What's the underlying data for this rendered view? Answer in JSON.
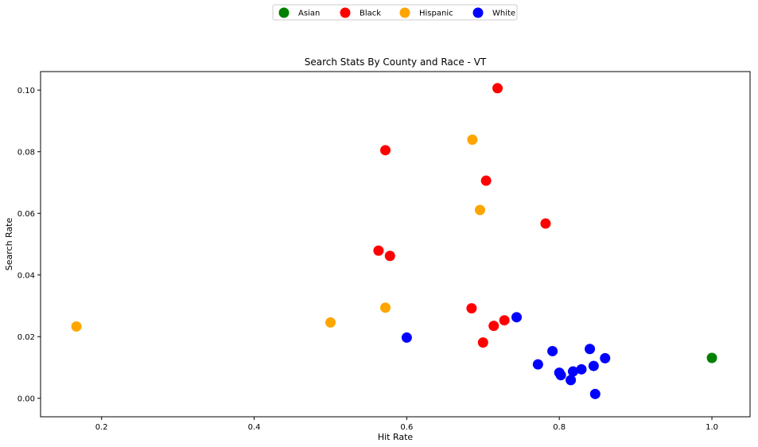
{
  "chart_data": {
    "type": "scatter",
    "title": "Search Stats By County and Race - VT",
    "xlabel": "Hit Rate",
    "ylabel": "Search Rate",
    "xlim": [
      0.12,
      1.05
    ],
    "ylim": [
      -0.006,
      0.106
    ],
    "xticks": [
      0.2,
      0.4,
      0.6,
      0.8,
      1.0
    ],
    "xtick_labels": [
      "0.2",
      "0.4",
      "0.6",
      "0.8",
      "1.0"
    ],
    "yticks": [
      0.0,
      0.02,
      0.04,
      0.06,
      0.08,
      0.1
    ],
    "ytick_labels": [
      "0.00",
      "0.02",
      "0.04",
      "0.06",
      "0.08",
      "0.10"
    ],
    "grid": false,
    "legend_placement": "top-center",
    "series": [
      {
        "name": "Asian",
        "color": "#008000",
        "points": [
          [
            1.0,
            0.0131
          ]
        ]
      },
      {
        "name": "Black",
        "color": "#ff0000",
        "points": [
          [
            0.719,
            0.1006
          ],
          [
            0.572,
            0.0805
          ],
          [
            0.704,
            0.0706
          ],
          [
            0.782,
            0.0567
          ],
          [
            0.563,
            0.0479
          ],
          [
            0.578,
            0.0462
          ],
          [
            0.685,
            0.0292
          ],
          [
            0.728,
            0.0253
          ],
          [
            0.714,
            0.0235
          ],
          [
            0.7,
            0.0181
          ]
        ]
      },
      {
        "name": "Hispanic",
        "color": "#ffa500",
        "points": [
          [
            0.686,
            0.0839
          ],
          [
            0.696,
            0.0611
          ],
          [
            0.572,
            0.0294
          ],
          [
            0.167,
            0.0233
          ],
          [
            0.5,
            0.0246
          ]
        ]
      },
      {
        "name": "White",
        "color": "#0000ff",
        "points": [
          [
            0.744,
            0.0263
          ],
          [
            0.6,
            0.0197
          ],
          [
            0.84,
            0.016
          ],
          [
            0.791,
            0.0153
          ],
          [
            0.86,
            0.013
          ],
          [
            0.772,
            0.011
          ],
          [
            0.845,
            0.0105
          ],
          [
            0.829,
            0.0094
          ],
          [
            0.818,
            0.0087
          ],
          [
            0.8,
            0.0083
          ],
          [
            0.802,
            0.0075
          ],
          [
            0.815,
            0.0059
          ],
          [
            0.847,
            0.0014
          ]
        ]
      }
    ]
  }
}
